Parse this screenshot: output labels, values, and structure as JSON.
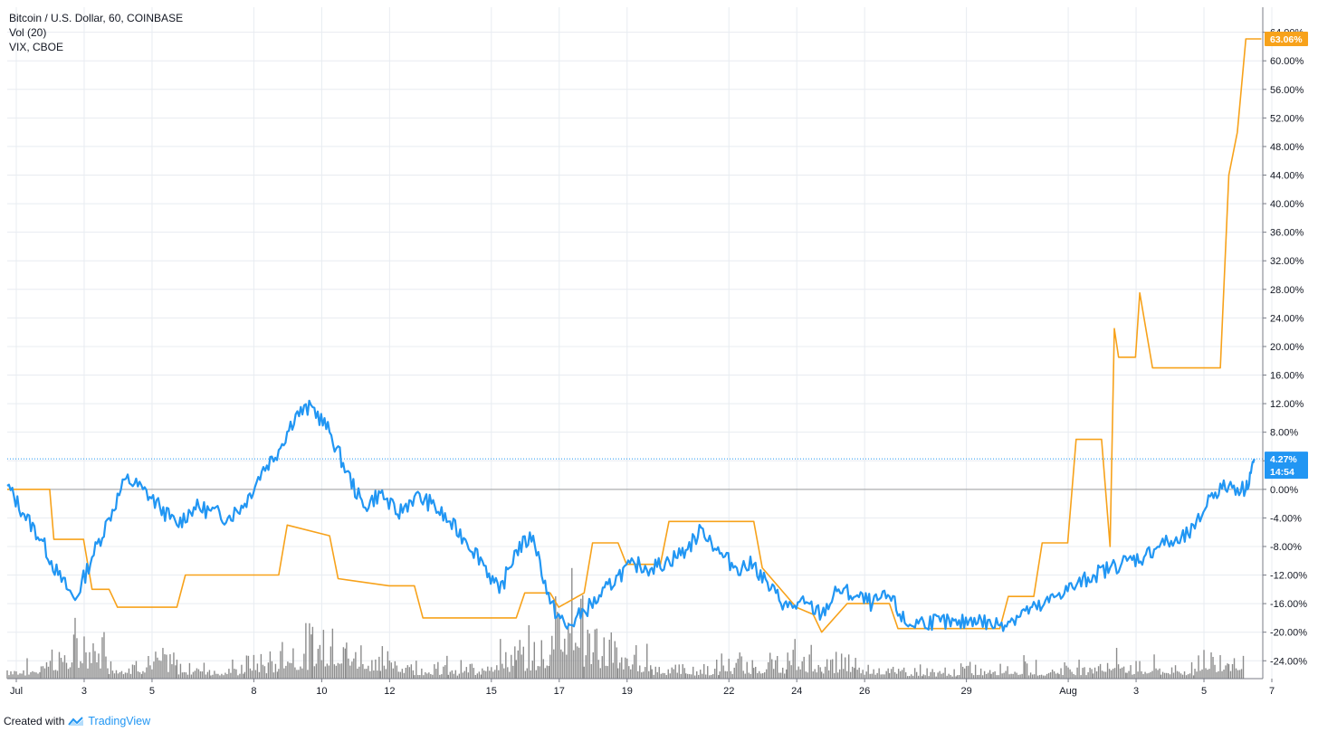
{
  "legend": {
    "line1": "Bitcoin / U.S. Dollar, 60, COINBASE",
    "line2": "Vol (20)",
    "line3": "VIX, CBOE"
  },
  "footer": {
    "created_with": "Created with",
    "brand": "TradingView"
  },
  "colors": {
    "btc": "#2196f3",
    "vix": "#f7a21b",
    "volume": "#8c8c8c",
    "grid": "#e8ecf1",
    "zero": "#9e9e9e"
  },
  "tags": {
    "vix_last": "63.06%",
    "btc_last": "4.27%",
    "countdown": "14:54"
  },
  "chart_data": {
    "type": "line",
    "title": "",
    "xlabel": "",
    "ylabel": "",
    "x_ticks": [
      "Jul",
      "3",
      "5",
      "8",
      "10",
      "12",
      "15",
      "17",
      "19",
      "22",
      "24",
      "26",
      "29",
      "Aug",
      "3",
      "5",
      "7"
    ],
    "y_ticks": [
      "-24.00%",
      "-20.00%",
      "-16.00%",
      "-12.00%",
      "-8.00%",
      "-4.00%",
      "0.00%",
      "4.00%",
      "8.00%",
      "12.00%",
      "16.00%",
      "20.00%",
      "24.00%",
      "28.00%",
      "32.00%",
      "36.00%",
      "40.00%",
      "44.00%",
      "48.00%",
      "52.00%",
      "56.00%",
      "60.00%",
      "64.00%"
    ],
    "ylim": [
      -26.5,
      67.5
    ],
    "y_unit": "%",
    "x_range": [
      "2024-07-01",
      "2024-08-07"
    ],
    "grid": true,
    "series": [
      {
        "name": "Bitcoin / U.S. Dollar, 60, COINBASE",
        "values": [
          [
            "2024-07-01",
            0.5
          ],
          [
            "2024-07-01 12:00",
            -3.5
          ],
          [
            "2024-07-02",
            -7.0
          ],
          [
            "2024-07-02 12:00",
            -12.0
          ],
          [
            "2024-07-03",
            -15.5
          ],
          [
            "2024-07-03 12:00",
            -9.5
          ],
          [
            "2024-07-04",
            -4.0
          ],
          [
            "2024-07-04 12:00",
            1.5
          ],
          [
            "2024-07-05",
            0.0
          ],
          [
            "2024-07-05 12:00",
            -2.5
          ],
          [
            "2024-07-06",
            -5.0
          ],
          [
            "2024-07-06 12:00",
            -2.5
          ],
          [
            "2024-07-07",
            -3.0
          ],
          [
            "2024-07-07 12:00",
            -4.0
          ],
          [
            "2024-07-08",
            -2.0
          ],
          [
            "2024-07-08 12:00",
            2.5
          ],
          [
            "2024-07-09",
            5.5
          ],
          [
            "2024-07-09 12:00",
            10.5
          ],
          [
            "2024-07-10",
            11.5
          ],
          [
            "2024-07-10 12:00",
            8.0
          ],
          [
            "2024-07-11",
            2.5
          ],
          [
            "2024-07-11 12:00",
            -2.5
          ],
          [
            "2024-07-12",
            -0.5
          ],
          [
            "2024-07-12 12:00",
            -3.5
          ],
          [
            "2024-07-13",
            -1.0
          ],
          [
            "2024-07-13 12:00",
            -2.0
          ],
          [
            "2024-07-14",
            -4.5
          ],
          [
            "2024-07-14 12:00",
            -7.0
          ],
          [
            "2024-07-15",
            -10.0
          ],
          [
            "2024-07-15 12:00",
            -14.5
          ],
          [
            "2024-07-16",
            -8.5
          ],
          [
            "2024-07-16 12:00",
            -6.5
          ],
          [
            "2024-07-17",
            -16.0
          ],
          [
            "2024-07-17 12:00",
            -19.5
          ],
          [
            "2024-07-18",
            -17.0
          ],
          [
            "2024-07-18 12:00",
            -15.0
          ],
          [
            "2024-07-19",
            -12.0
          ],
          [
            "2024-07-19 12:00",
            -10.5
          ],
          [
            "2024-07-20",
            -11.0
          ],
          [
            "2024-07-20 12:00",
            -10.0
          ],
          [
            "2024-07-21",
            -8.5
          ],
          [
            "2024-07-21 12:00",
            -5.5
          ],
          [
            "2024-07-22",
            -9.0
          ],
          [
            "2024-07-22 12:00",
            -11.0
          ],
          [
            "2024-07-23",
            -10.5
          ],
          [
            "2024-07-23 12:00",
            -14.0
          ],
          [
            "2024-07-24",
            -16.5
          ],
          [
            "2024-07-24 12:00",
            -16.0
          ],
          [
            "2024-07-25",
            -17.5
          ],
          [
            "2024-07-25 12:00",
            -14.0
          ],
          [
            "2024-07-26",
            -15.0
          ],
          [
            "2024-07-26 12:00",
            -16.0
          ],
          [
            "2024-07-27",
            -15.0
          ],
          [
            "2024-07-27 12:00",
            -19.0
          ],
          [
            "2024-07-28",
            -18.5
          ],
          [
            "2024-07-28 12:00",
            -18.5
          ],
          [
            "2024-07-29",
            -19.0
          ],
          [
            "2024-07-29 12:00",
            -18.0
          ],
          [
            "2024-07-30",
            -19.0
          ],
          [
            "2024-07-30 12:00",
            -18.5
          ],
          [
            "2024-07-31",
            -17.0
          ],
          [
            "2024-07-31 12:00",
            -16.5
          ],
          [
            "2024-08-01",
            -14.5
          ],
          [
            "2024-08-01 12:00",
            -13.5
          ],
          [
            "2024-08-02",
            -12.0
          ],
          [
            "2024-08-02 12:00",
            -11.0
          ],
          [
            "2024-08-03",
            -10.0
          ],
          [
            "2024-08-03 12:00",
            -9.5
          ],
          [
            "2024-08-04",
            -7.5
          ],
          [
            "2024-08-04 12:00",
            -7.5
          ],
          [
            "2024-08-05",
            -5.5
          ],
          [
            "2024-08-05 12:00",
            -0.5
          ],
          [
            "2024-08-06",
            0.5
          ],
          [
            "2024-08-06 12:00",
            0.0
          ],
          [
            "2024-08-06 18:00",
            4.27
          ]
        ]
      },
      {
        "name": "VIX, CBOE",
        "values": [
          [
            "2024-07-01",
            0.0
          ],
          [
            "2024-07-02 06:00",
            0.0
          ],
          [
            "2024-07-02 09:00",
            -7.0
          ],
          [
            "2024-07-03 06:00",
            -7.0
          ],
          [
            "2024-07-03 12:00",
            -14.0
          ],
          [
            "2024-07-04 00:00",
            -14.0
          ],
          [
            "2024-07-04 06:00",
            -16.5
          ],
          [
            "2024-07-05 12:00",
            -16.5
          ],
          [
            "2024-07-06 00:00",
            -16.5
          ],
          [
            "2024-07-06 06:00",
            -12.0
          ],
          [
            "2024-07-09 00:00",
            -12.0
          ],
          [
            "2024-07-09 06:00",
            -5.0
          ],
          [
            "2024-07-10 12:00",
            -6.5
          ],
          [
            "2024-07-10 18:00",
            -12.5
          ],
          [
            "2024-07-12 06:00",
            -13.5
          ],
          [
            "2024-07-13 00:00",
            -13.5
          ],
          [
            "2024-07-13 06:00",
            -18.0
          ],
          [
            "2024-07-16 00:00",
            -18.0
          ],
          [
            "2024-07-16 06:00",
            -14.5
          ],
          [
            "2024-07-17 00:00",
            -14.5
          ],
          [
            "2024-07-17 06:00",
            -16.5
          ],
          [
            "2024-07-18 00:00",
            -14.5
          ],
          [
            "2024-07-18 06:00",
            -7.5
          ],
          [
            "2024-07-19 00:00",
            -7.5
          ],
          [
            "2024-07-19 06:00",
            -10.5
          ],
          [
            "2024-07-20 06:00",
            -10.5
          ],
          [
            "2024-07-20 12:00",
            -4.5
          ],
          [
            "2024-07-23 00:00",
            -4.5
          ],
          [
            "2024-07-23 06:00",
            -11.0
          ],
          [
            "2024-07-24 06:00",
            -16.5
          ],
          [
            "2024-07-24 18:00",
            -17.5
          ],
          [
            "2024-07-25 00:00",
            -20.0
          ],
          [
            "2024-07-25 18:00",
            -16.0
          ],
          [
            "2024-07-26 06:00",
            -16.0
          ],
          [
            "2024-07-27 00:00",
            -16.0
          ],
          [
            "2024-07-27 06:00",
            -19.5
          ],
          [
            "2024-07-29 00:00",
            -19.5
          ],
          [
            "2024-07-30 06:00",
            -19.5
          ],
          [
            "2024-07-30 12:00",
            -15.0
          ],
          [
            "2024-07-31 06:00",
            -15.0
          ],
          [
            "2024-07-31 12:00",
            -7.5
          ],
          [
            "2024-08-01 06:00",
            -7.5
          ],
          [
            "2024-08-01 12:00",
            7.0
          ],
          [
            "2024-08-02 06:00",
            7.0
          ],
          [
            "2024-08-02 12:00",
            -8.0
          ],
          [
            "2024-08-02 15:00",
            22.5
          ],
          [
            "2024-08-02 18:00",
            18.5
          ],
          [
            "2024-08-03 06:00",
            18.5
          ],
          [
            "2024-08-03 09:00",
            27.5
          ],
          [
            "2024-08-03 18:00",
            17.0
          ],
          [
            "2024-08-05 18:00",
            17.0
          ],
          [
            "2024-08-06 00:00",
            44.0
          ],
          [
            "2024-08-06 06:00",
            50.0
          ],
          [
            "2024-08-06 12:00",
            63.06
          ],
          [
            "2024-08-06 23:00",
            63.06
          ]
        ]
      },
      {
        "name": "Vol (20)",
        "values": [
          [
            "2024-07-01",
            12
          ],
          [
            "2024-07-02",
            28
          ],
          [
            "2024-07-03",
            40
          ],
          [
            "2024-07-04",
            18
          ],
          [
            "2024-07-05",
            22
          ],
          [
            "2024-07-06",
            15
          ],
          [
            "2024-07-07",
            12
          ],
          [
            "2024-07-08",
            20
          ],
          [
            "2024-07-09",
            35
          ],
          [
            "2024-07-10",
            48
          ],
          [
            "2024-07-11",
            30
          ],
          [
            "2024-07-12",
            22
          ],
          [
            "2024-07-13",
            14
          ],
          [
            "2024-07-14",
            12
          ],
          [
            "2024-07-15",
            26
          ],
          [
            "2024-07-16",
            30
          ],
          [
            "2024-07-17",
            95
          ],
          [
            "2024-07-18",
            40
          ],
          [
            "2024-07-19",
            25
          ],
          [
            "2024-07-20",
            14
          ],
          [
            "2024-07-21",
            12
          ],
          [
            "2024-07-22",
            18
          ],
          [
            "2024-07-23",
            20
          ],
          [
            "2024-07-24",
            24
          ],
          [
            "2024-07-25",
            20
          ],
          [
            "2024-07-26",
            15
          ],
          [
            "2024-07-27",
            10
          ],
          [
            "2024-07-28",
            8
          ],
          [
            "2024-07-29",
            12
          ],
          [
            "2024-07-30",
            14
          ],
          [
            "2024-07-31",
            12
          ],
          [
            "2024-08-01",
            14
          ],
          [
            "2024-08-02",
            20
          ],
          [
            "2024-08-03",
            14
          ],
          [
            "2024-08-04",
            12
          ],
          [
            "2024-08-05",
            25
          ],
          [
            "2024-08-06",
            30
          ]
        ]
      }
    ]
  }
}
